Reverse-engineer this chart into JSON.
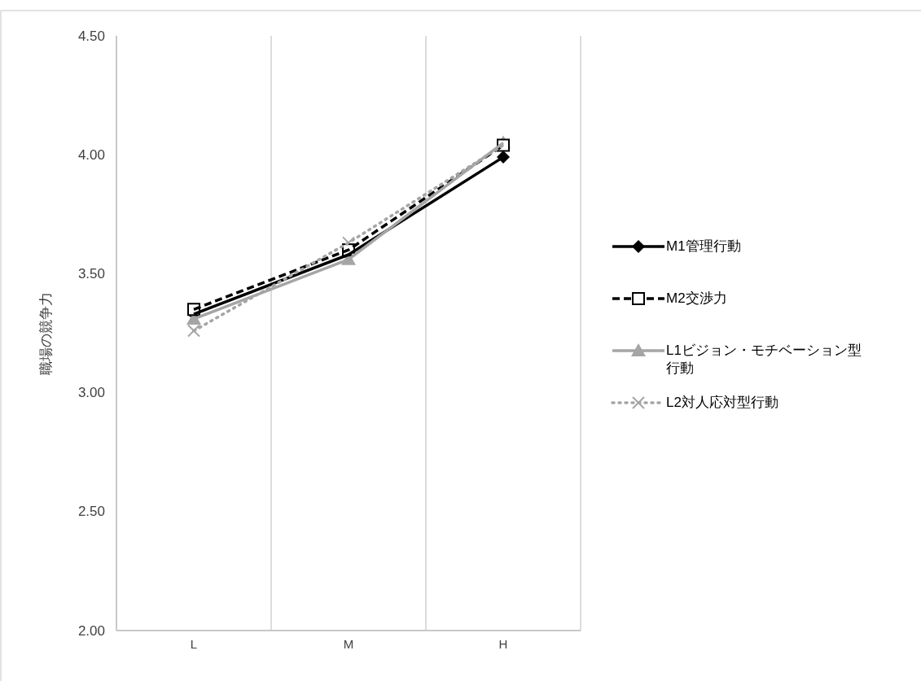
{
  "chart_data": {
    "type": "line",
    "ylabel": "職場の競争力",
    "categories": [
      "L",
      "M",
      "H"
    ],
    "ylim": [
      2.0,
      4.5
    ],
    "yticks": [
      {
        "value": 2.0,
        "label": "2.00"
      },
      {
        "value": 2.5,
        "label": "2.50"
      },
      {
        "value": 3.0,
        "label": "3.00"
      },
      {
        "value": 3.5,
        "label": "3.50"
      },
      {
        "value": 4.0,
        "label": "4.00"
      },
      {
        "value": 4.5,
        "label": "4.50"
      }
    ],
    "grid": "x",
    "legend": "right",
    "series": [
      {
        "name": "M1管理行動",
        "color": "#000000",
        "marker": "diamond",
        "line_style": "solid",
        "values": [
          3.33,
          3.58,
          3.99
        ]
      },
      {
        "name": "M2交渉力",
        "color": "#000000",
        "marker": "square",
        "line_style": "dashed",
        "values": [
          3.35,
          3.6,
          4.04
        ]
      },
      {
        "name": "L1ビジョン・モチベーション型行動",
        "color": "#a5a5a5",
        "marker": "triangle",
        "line_style": "solid",
        "values": [
          3.31,
          3.56,
          4.05
        ]
      },
      {
        "name": "L2対人応対型行動",
        "color": "#a5a5a5",
        "marker": "cross",
        "line_style": "dotted",
        "values": [
          3.26,
          3.63,
          4.04
        ]
      }
    ]
  }
}
